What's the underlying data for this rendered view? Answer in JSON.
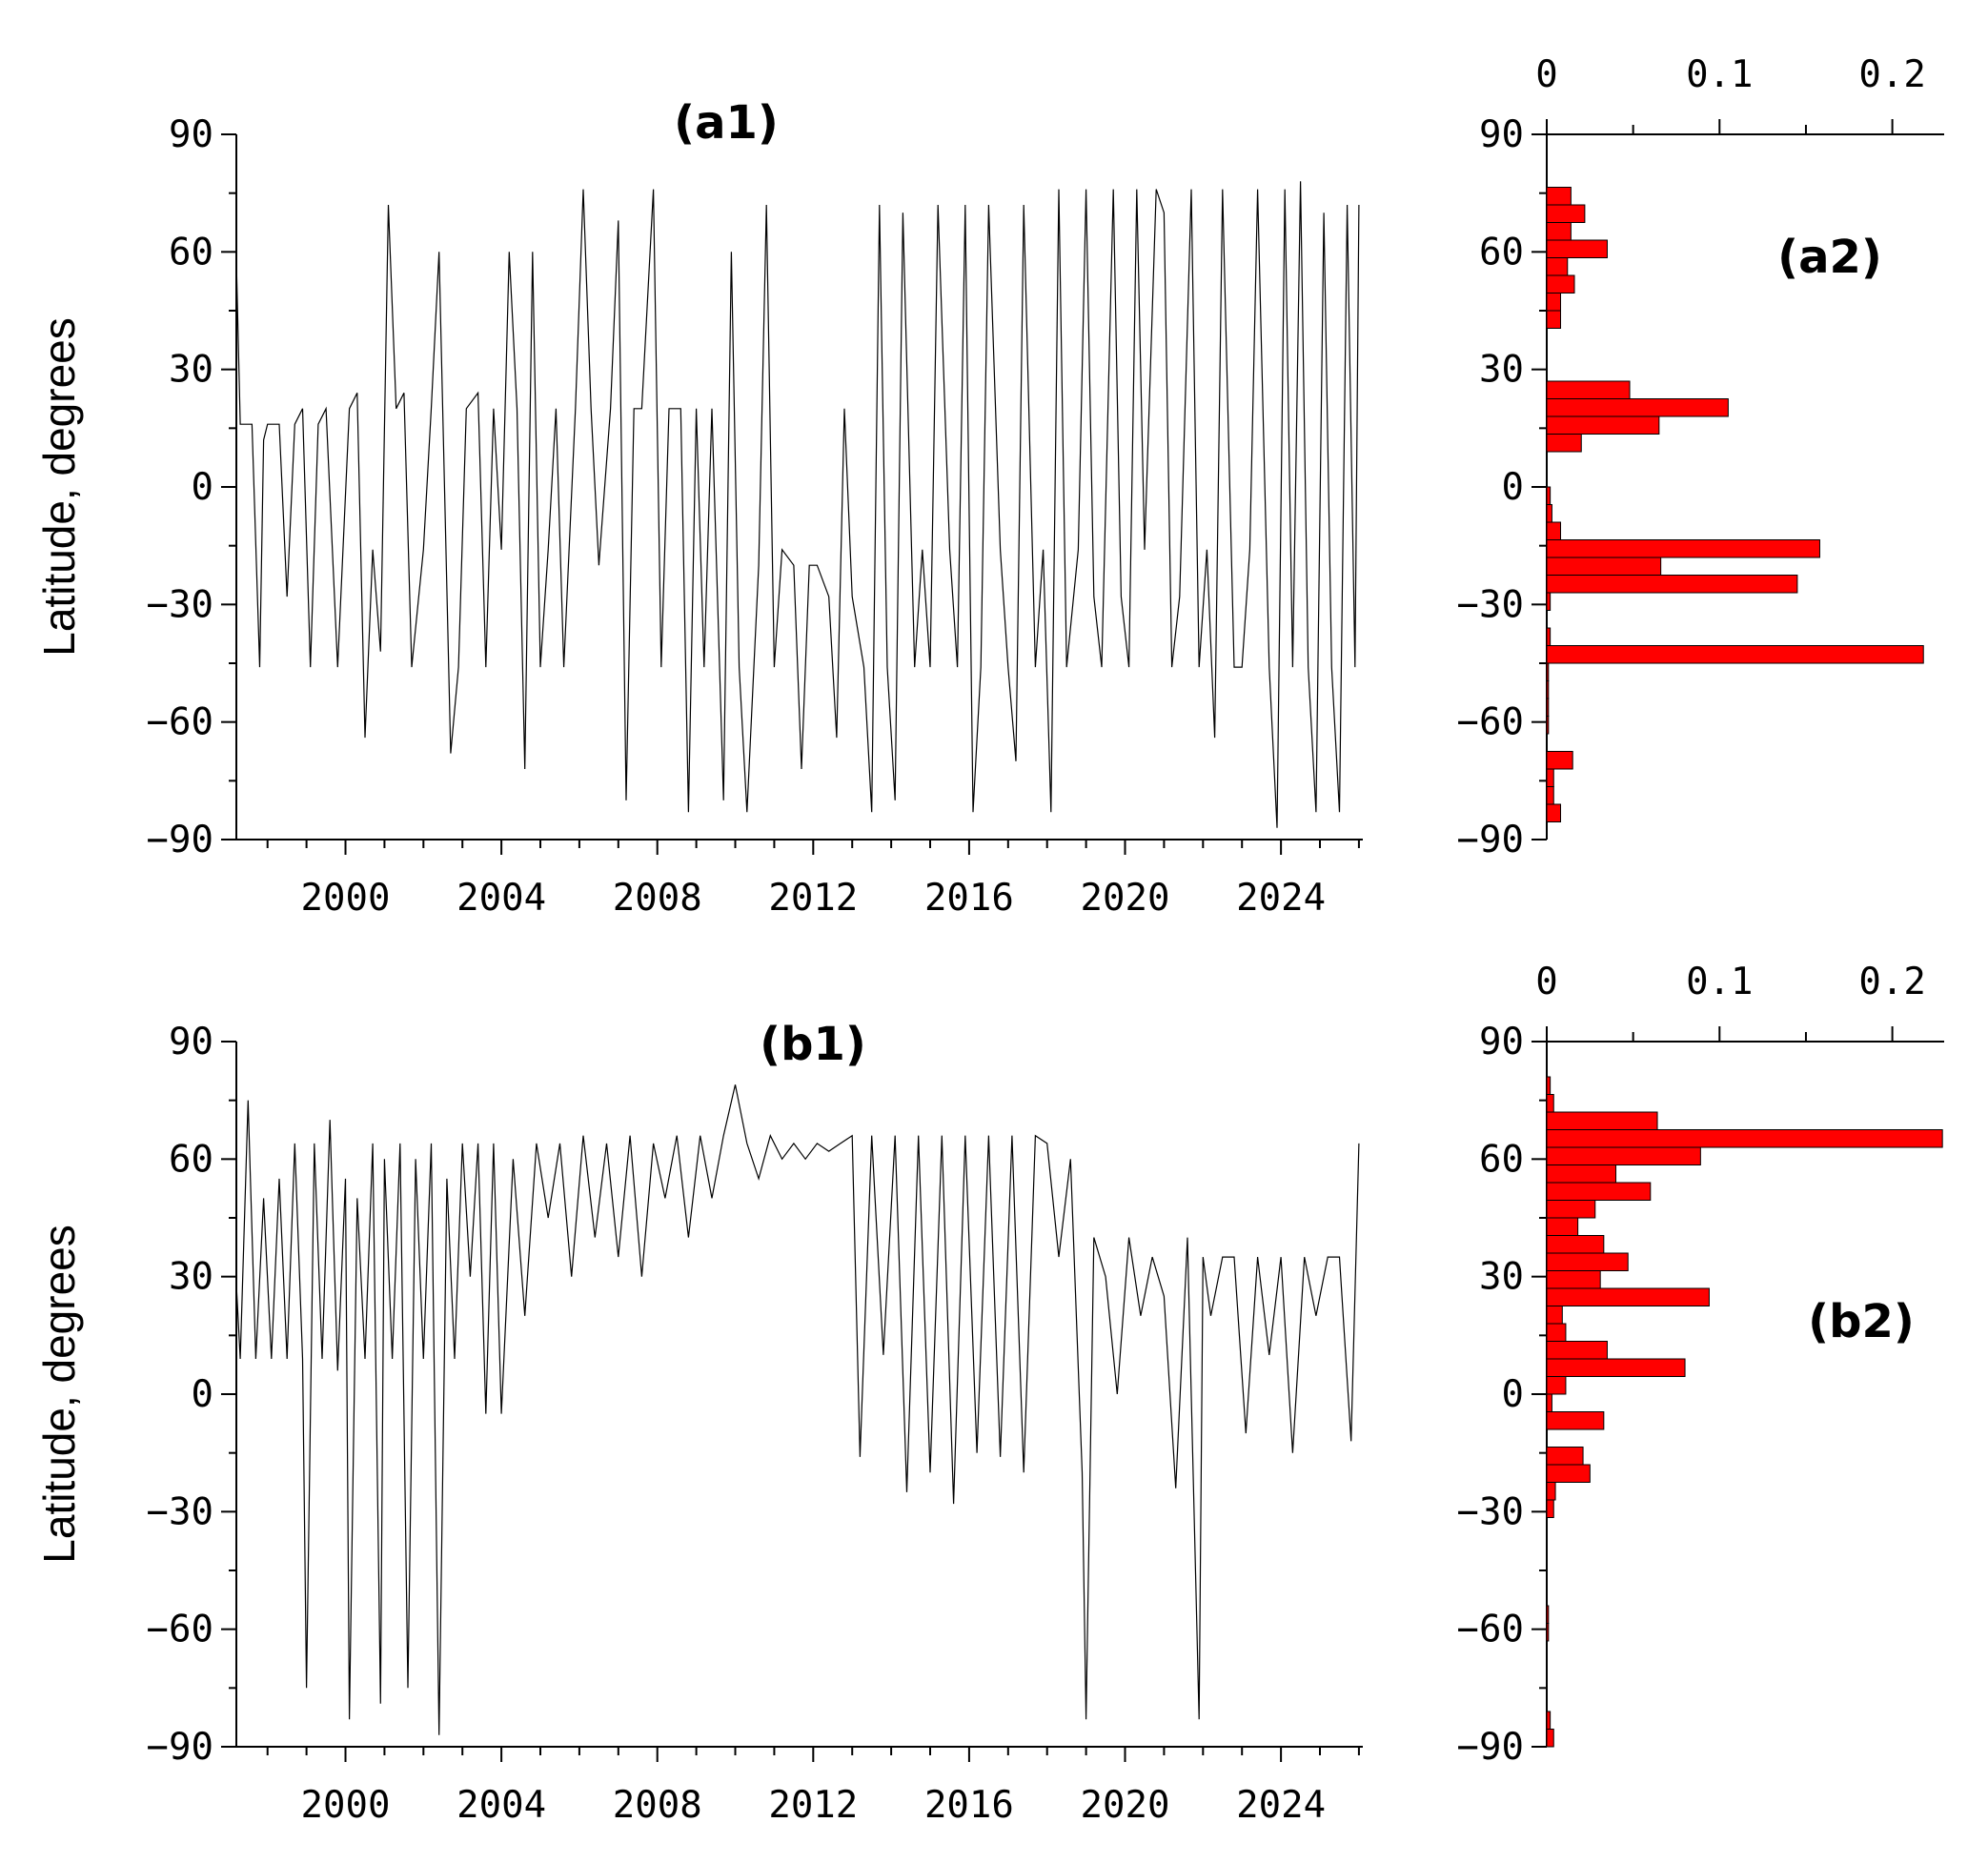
{
  "chart_data": [
    {
      "panel": "(a1)",
      "type": "line",
      "ylabel": "Latitude, degrees",
      "xlim": [
        1997.2,
        2026.1
      ],
      "ylim": [
        -90,
        90
      ],
      "xticks": [
        2000,
        2004,
        2008,
        2012,
        2016,
        2020,
        2024
      ],
      "yticks": [
        90,
        60,
        30,
        0,
        -30,
        -60,
        -90
      ],
      "series": [
        {
          "x": [
            1997.2,
            1997.3,
            1997.4,
            1997.6,
            1997.8,
            1997.9,
            1998.0,
            1998.1,
            1998.3,
            1998.5,
            1998.7,
            1998.9,
            1999.1,
            1999.3,
            1999.5,
            1999.8,
            2000.1,
            2000.3,
            2000.5,
            2000.7,
            2000.9,
            2001.1,
            2001.3,
            2001.5,
            2001.7,
            2002.0,
            2002.2,
            2002.4,
            2002.7,
            2002.9,
            2003.1,
            2003.4,
            2003.6,
            2003.8,
            2004.0,
            2004.2,
            2004.4,
            2004.6,
            2004.8,
            2005.0,
            2005.2,
            2005.4,
            2005.6,
            2005.9,
            2006.1,
            2006.3,
            2006.5,
            2006.8,
            2007.0,
            2007.2,
            2007.4,
            2007.6,
            2007.9,
            2008.1,
            2008.3,
            2008.6,
            2008.8,
            2009.0,
            2009.2,
            2009.4,
            2009.7,
            2009.9,
            2010.1,
            2010.3,
            2010.6,
            2010.8,
            2011.0,
            2011.2,
            2011.5,
            2011.7,
            2011.9,
            2012.1,
            2012.4,
            2012.6,
            2012.8,
            2013.0,
            2013.3,
            2013.5,
            2013.7,
            2013.9,
            2014.1,
            2014.3,
            2014.6,
            2014.8,
            2015.0,
            2015.2,
            2015.5,
            2015.7,
            2015.9,
            2016.1,
            2016.3,
            2016.5,
            2016.8,
            2017.0,
            2017.2,
            2017.4,
            2017.7,
            2017.9,
            2018.1,
            2018.3,
            2018.5,
            2018.8,
            2019.0,
            2019.2,
            2019.4,
            2019.7,
            2019.9,
            2020.1,
            2020.3,
            2020.5,
            2020.8,
            2021.0,
            2021.2,
            2021.4,
            2021.7,
            2021.9,
            2022.1,
            2022.3,
            2022.5,
            2022.8,
            2023.0,
            2023.2,
            2023.4,
            2023.7,
            2023.9,
            2024.1,
            2024.3,
            2024.5,
            2024.7,
            2024.9,
            2025.1,
            2025.3,
            2025.5,
            2025.7,
            2025.9,
            2026.0
          ],
          "y": [
            58,
            16,
            16,
            16,
            -46,
            12,
            16,
            16,
            16,
            -28,
            16,
            20,
            -46,
            16,
            20,
            -46,
            20,
            24,
            -64,
            -16,
            -42,
            72,
            20,
            24,
            -46,
            -16,
            20,
            60,
            -68,
            -46,
            20,
            24,
            -46,
            20,
            -16,
            60,
            20,
            -72,
            60,
            -46,
            -16,
            20,
            -46,
            20,
            76,
            20,
            -20,
            20,
            68,
            -80,
            20,
            20,
            76,
            -46,
            20,
            20,
            -83,
            20,
            -46,
            20,
            -80,
            60,
            -46,
            -83,
            -20,
            72,
            -46,
            -16,
            -20,
            -72,
            -20,
            -20,
            -28,
            -64,
            20,
            -28,
            -46,
            -83,
            72,
            -46,
            -80,
            70,
            -46,
            -16,
            -46,
            72,
            -16,
            -46,
            72,
            -83,
            -46,
            72,
            -16,
            -46,
            -70,
            72,
            -46,
            -16,
            -83,
            76,
            -46,
            -16,
            76,
            -28,
            -46,
            76,
            -28,
            -46,
            76,
            -16,
            76,
            70,
            -46,
            -28,
            76,
            -46,
            -16,
            -64,
            76,
            -46,
            -46,
            -16,
            76,
            -46,
            -87,
            76,
            -46,
            78,
            -46,
            -83,
            70,
            -46,
            -83,
            72,
            -46,
            72
          ]
        }
      ]
    },
    {
      "panel": "(a2)",
      "type": "bar",
      "orientation": "horizontal",
      "xlim": [
        0,
        0.23
      ],
      "xticks": [
        0,
        0.1,
        0.2
      ],
      "ylim": [
        -90,
        90
      ],
      "yticks": [
        90,
        60,
        30,
        0,
        -30,
        -60,
        -90
      ],
      "bin_width": 4.5,
      "categories": [
        78.75,
        74.25,
        69.75,
        65.25,
        60.75,
        56.25,
        51.75,
        47.25,
        42.75,
        38.25,
        33.75,
        29.25,
        24.75,
        20.25,
        15.75,
        11.25,
        6.75,
        2.25,
        -2.25,
        -6.75,
        -11.25,
        -15.75,
        -20.25,
        -24.75,
        -29.25,
        -33.75,
        -38.25,
        -42.75,
        -47.25,
        -51.75,
        -56.25,
        -60.75,
        -65.25,
        -69.75,
        -74.25,
        -78.75,
        -83.25,
        -87.75
      ],
      "values": [
        0,
        0.014,
        0.022,
        0.014,
        0.035,
        0.012,
        0.016,
        0.008,
        0.008,
        0,
        0,
        0,
        0.048,
        0.105,
        0.065,
        0.02,
        0,
        0,
        0.002,
        0.003,
        0.008,
        0.158,
        0.066,
        0.145,
        0.002,
        0,
        0.002,
        0.218,
        0.001,
        0.001,
        0.001,
        0.001,
        0,
        0.015,
        0.004,
        0.004,
        0.008,
        0
      ]
    },
    {
      "panel": "(b1)",
      "type": "line",
      "ylabel": "Latitude, degrees",
      "xlim": [
        1997.2,
        2026.1
      ],
      "ylim": [
        -90,
        90
      ],
      "xticks": [
        2000,
        2004,
        2008,
        2012,
        2016,
        2020,
        2024
      ],
      "yticks": [
        90,
        60,
        30,
        0,
        -30,
        -60,
        -90
      ],
      "series": [
        {
          "x": [
            1997.2,
            1997.3,
            1997.5,
            1997.7,
            1997.9,
            1998.1,
            1998.3,
            1998.5,
            1998.7,
            1998.9,
            1999.0,
            1999.2,
            1999.4,
            1999.6,
            1999.8,
            2000.0,
            2000.1,
            2000.3,
            2000.5,
            2000.7,
            2000.9,
            2001.0,
            2001.2,
            2001.4,
            2001.6,
            2001.8,
            2002.0,
            2002.2,
            2002.4,
            2002.6,
            2002.8,
            2003.0,
            2003.2,
            2003.4,
            2003.6,
            2003.8,
            2004.0,
            2004.3,
            2004.6,
            2004.9,
            2005.2,
            2005.5,
            2005.8,
            2006.1,
            2006.4,
            2006.7,
            2007.0,
            2007.3,
            2007.6,
            2007.9,
            2008.2,
            2008.5,
            2008.8,
            2009.1,
            2009.4,
            2009.7,
            2010.0,
            2010.3,
            2010.6,
            2010.9,
            2011.2,
            2011.5,
            2011.8,
            2012.1,
            2012.4,
            2012.7,
            2013.0,
            2013.2,
            2013.5,
            2013.8,
            2014.1,
            2014.4,
            2014.7,
            2015.0,
            2015.3,
            2015.6,
            2015.9,
            2016.2,
            2016.5,
            2016.8,
            2017.1,
            2017.4,
            2017.7,
            2018.0,
            2018.3,
            2018.6,
            2018.9,
            2019.0,
            2019.2,
            2019.5,
            2019.8,
            2020.1,
            2020.4,
            2020.7,
            2021.0,
            2021.3,
            2021.6,
            2021.9,
            2022.0,
            2022.2,
            2022.5,
            2022.8,
            2023.1,
            2023.4,
            2023.7,
            2024.0,
            2024.3,
            2024.6,
            2024.9,
            2025.2,
            2025.5,
            2025.8,
            2026.0
          ],
          "y": [
            28,
            9,
            75,
            9,
            50,
            9,
            55,
            9,
            64,
            9,
            -75,
            64,
            9,
            70,
            6,
            55,
            -83,
            50,
            9,
            64,
            -79,
            60,
            9,
            64,
            -75,
            60,
            9,
            64,
            -87,
            55,
            9,
            64,
            30,
            64,
            -5,
            64,
            -5,
            60,
            20,
            64,
            45,
            64,
            30,
            66,
            40,
            64,
            35,
            66,
            30,
            64,
            50,
            66,
            40,
            66,
            50,
            66,
            79,
            64,
            55,
            66,
            60,
            64,
            60,
            64,
            62,
            64,
            66,
            -16,
            66,
            10,
            66,
            -25,
            66,
            -20,
            66,
            -28,
            66,
            -15,
            66,
            -16,
            66,
            -20,
            66,
            64,
            35,
            60,
            -20,
            -83,
            40,
            30,
            0,
            40,
            20,
            35,
            25,
            -24,
            40,
            -83,
            35,
            20,
            35,
            35,
            -10,
            35,
            10,
            35,
            -15,
            35,
            20,
            35,
            35,
            -12,
            64
          ]
        }
      ]
    },
    {
      "panel": "(b2)",
      "type": "bar",
      "orientation": "horizontal",
      "xlim": [
        0,
        0.23
      ],
      "xticks": [
        0,
        0.1,
        0.2
      ],
      "ylim": [
        -90,
        90
      ],
      "yticks": [
        90,
        60,
        30,
        0,
        -30,
        -60,
        -90
      ],
      "bin_width": 4.5,
      "categories": [
        78.75,
        74.25,
        69.75,
        65.25,
        60.75,
        56.25,
        51.75,
        47.25,
        42.75,
        38.25,
        33.75,
        29.25,
        24.75,
        20.25,
        15.75,
        11.25,
        6.75,
        2.25,
        -2.25,
        -6.75,
        -11.25,
        -15.75,
        -20.25,
        -24.75,
        -29.25,
        -33.75,
        -38.25,
        -42.75,
        -47.25,
        -51.75,
        -56.25,
        -60.75,
        -65.25,
        -69.75,
        -74.25,
        -78.75,
        -83.25,
        -87.75
      ],
      "values": [
        0.002,
        0.004,
        0.064,
        0.229,
        0.089,
        0.04,
        0.06,
        0.028,
        0.018,
        0.033,
        0.047,
        0.031,
        0.094,
        0.009,
        0.011,
        0.035,
        0.08,
        0.011,
        0.003,
        0.033,
        0,
        0.021,
        0.025,
        0.005,
        0.004,
        0,
        0,
        0,
        0,
        0,
        0.001,
        0.001,
        0,
        0,
        0,
        0,
        0.002,
        0.004
      ]
    }
  ]
}
